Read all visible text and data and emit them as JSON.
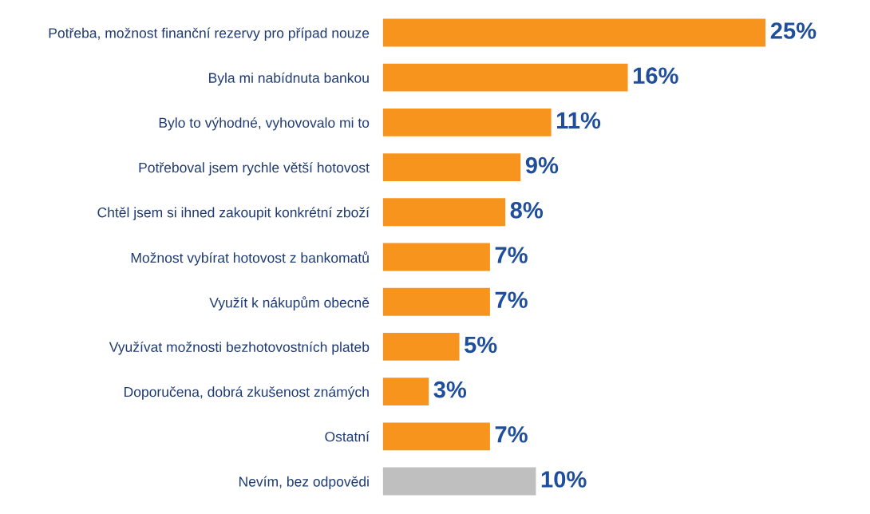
{
  "chart_data": {
    "type": "bar",
    "orientation": "horizontal",
    "xlim": [
      0,
      25
    ],
    "categories": [
      "Potřeba, možnost finanční rezervy pro případ nouze",
      "Byla mi nabídnuta bankou",
      "Bylo to výhodné, vyhovovalo mi to",
      "Potřeboval jsem rychle větší hotovost",
      "Chtěl jsem si ihned zakoupit konkrétní zboží",
      "Možnost vybírat hotovost z bankomatů",
      "Využít k nákupům obecně",
      "Využívat možnosti bezhotovostních plateb",
      "Doporučena, dobrá zkušenost známých",
      "Ostatní",
      "Nevím, bez odpovědi"
    ],
    "values": [
      25,
      16,
      11,
      9,
      8,
      7,
      7,
      5,
      3,
      7,
      10
    ],
    "value_labels": [
      "25%",
      "16%",
      "11%",
      "9%",
      "8%",
      "7%",
      "7%",
      "5%",
      "3%",
      "7%",
      "10%"
    ],
    "colors": [
      "#f7941d",
      "#f7941d",
      "#f7941d",
      "#f7941d",
      "#f7941d",
      "#f7941d",
      "#f7941d",
      "#f7941d",
      "#f7941d",
      "#f7941d",
      "#bfbfbf"
    ],
    "grid": false,
    "legend": false
  }
}
